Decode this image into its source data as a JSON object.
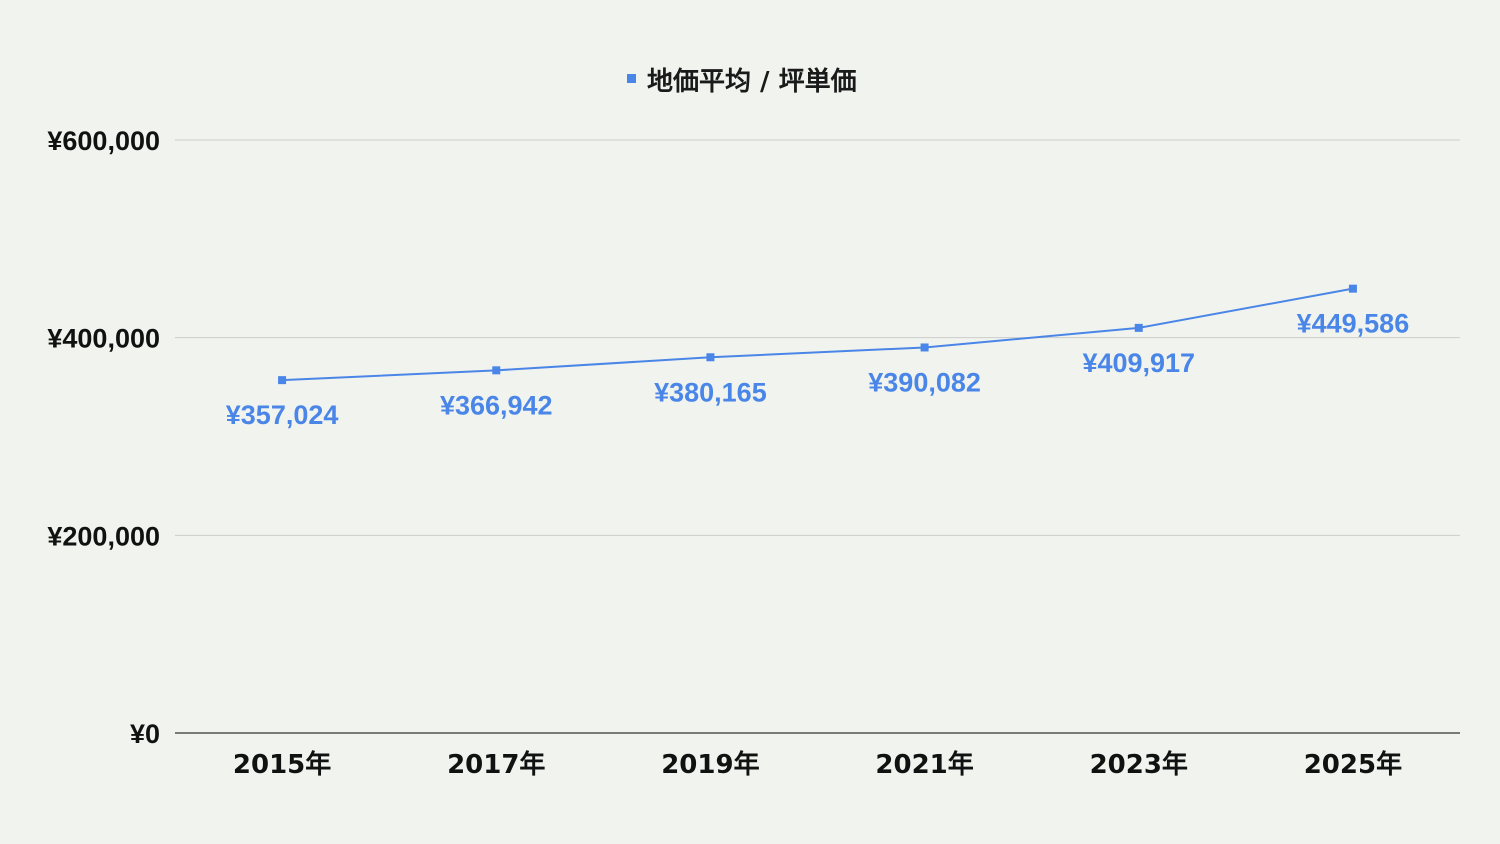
{
  "chart_data": {
    "type": "line",
    "title": "",
    "xlabel": "",
    "ylabel": "",
    "categories": [
      "2015年",
      "2017年",
      "2019年",
      "2021年",
      "2023年",
      "2025年"
    ],
    "series": [
      {
        "name": "地価平均 / 坪単価",
        "values": [
          357024,
          366942,
          380165,
          390082,
          409917,
          449586
        ],
        "labels": [
          "¥357,024",
          "¥366,942",
          "¥380,165",
          "¥390,082",
          "¥409,917",
          "¥449,586"
        ],
        "color": "#4a86e8"
      }
    ],
    "ylim": [
      0,
      600000
    ],
    "yticks": [
      {
        "value": 0,
        "label": "¥0"
      },
      {
        "value": 200000,
        "label": "¥200,000"
      },
      {
        "value": 400000,
        "label": "¥400,000"
      },
      {
        "value": 600000,
        "label": "¥600,000"
      }
    ],
    "grid": true,
    "legend": "top-center",
    "colors": {
      "background": "#f1f3ee",
      "gridline": "#cccccc",
      "axis": "#333333",
      "series": "#4a86e8",
      "text": "#111111"
    }
  }
}
